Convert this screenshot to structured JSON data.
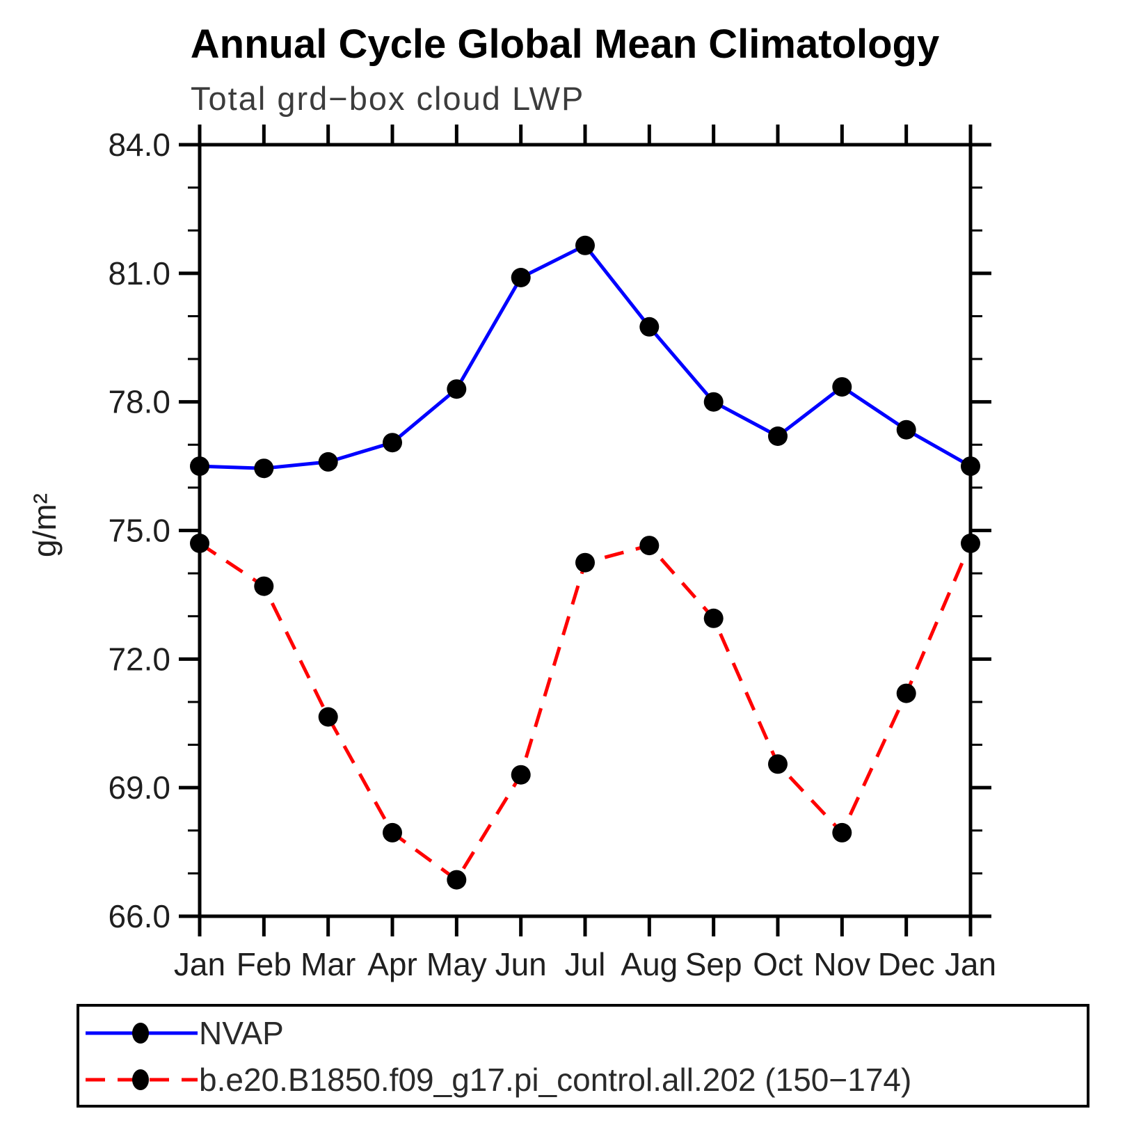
{
  "page": {
    "background_color": "#ffffff"
  },
  "chart_data": {
    "type": "line",
    "title": "Annual Cycle Global Mean Climatology",
    "subtitle": "Total grd−box cloud LWP",
    "xlabel": "",
    "ylabel": "g/m²",
    "x_categories": [
      "Jan",
      "Feb",
      "Mar",
      "Apr",
      "May",
      "Jun",
      "Jul",
      "Aug",
      "Sep",
      "Oct",
      "Nov",
      "Dec",
      "Jan"
    ],
    "ylim": [
      66.0,
      84.0
    ],
    "ytick_major_values": [
      84.0,
      81.0,
      78.0,
      75.0,
      72.0,
      69.0,
      66.0
    ],
    "ytick_major_labels": [
      "84.0",
      "81.0",
      "78.0",
      "75.0",
      "72.0",
      "69.0",
      "66.0"
    ],
    "ytick_minor_step": 1.0,
    "grid": false,
    "frame": true,
    "legend_position": "bottom-left-box",
    "axis_color": "#000000",
    "marker_color": "#000000",
    "series": [
      {
        "name": "NVAP",
        "color": "#0000ff",
        "line_style": "solid",
        "marker": "filled-circle",
        "values": [
          76.5,
          76.45,
          76.6,
          77.05,
          78.3,
          80.9,
          81.65,
          79.75,
          78.0,
          77.2,
          78.35,
          77.35,
          76.5
        ]
      },
      {
        "name": "b.e20.B1850.f09_g17.pi_control.all.202 (150−174)",
        "color": "#ff0000",
        "line_style": "dashed",
        "marker": "filled-circle",
        "values": [
          74.7,
          73.7,
          70.65,
          67.95,
          66.85,
          69.3,
          74.25,
          74.65,
          72.95,
          69.55,
          67.95,
          71.2,
          74.7
        ]
      }
    ]
  }
}
